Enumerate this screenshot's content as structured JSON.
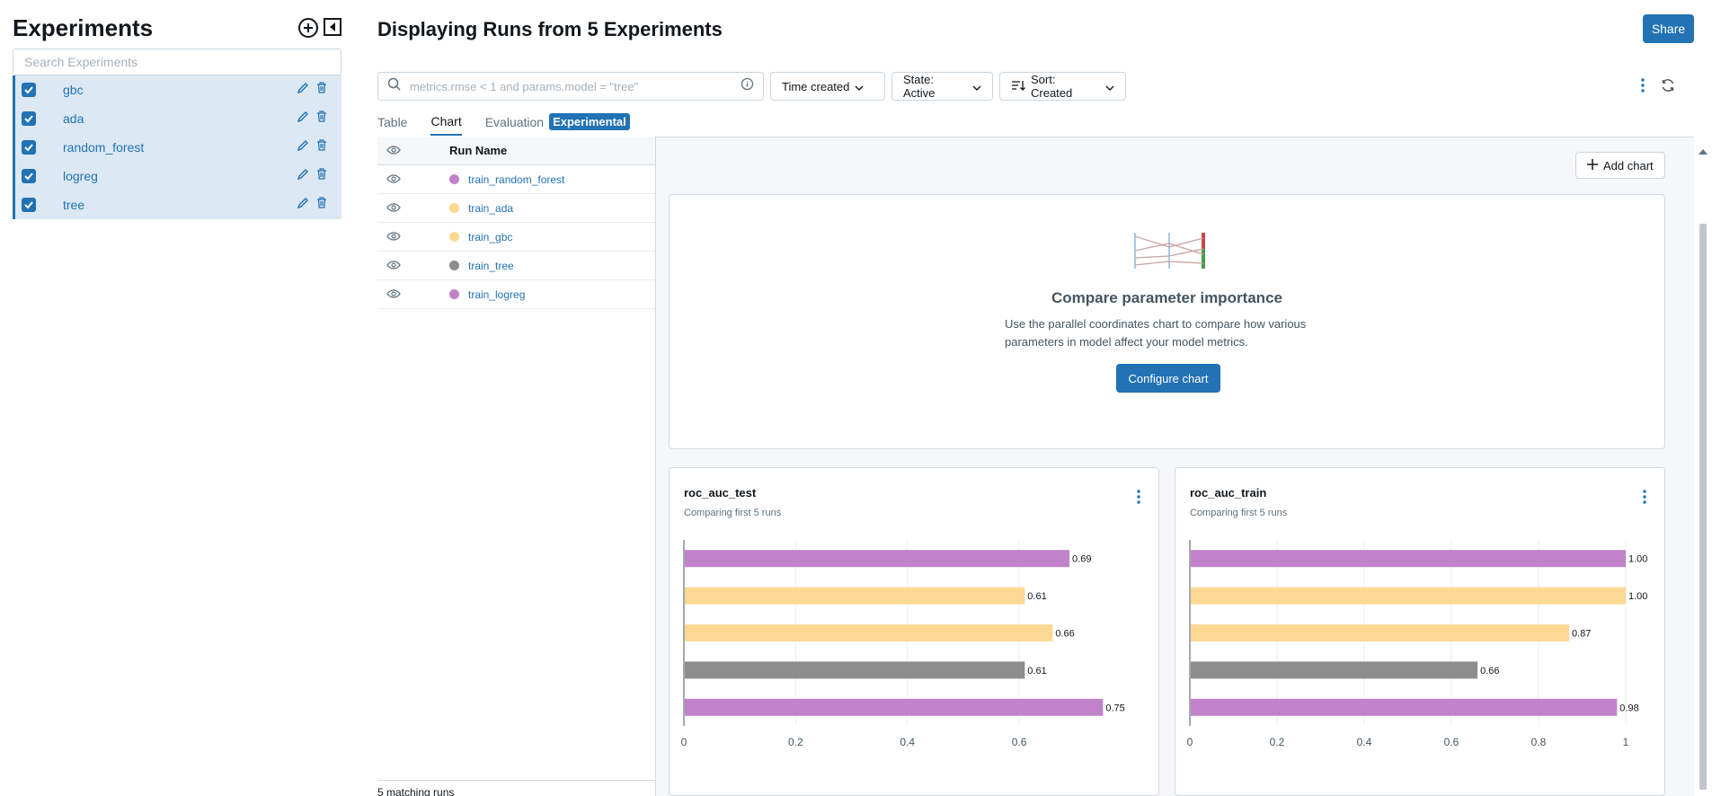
{
  "sidebar": {
    "title": "Experiments",
    "search_placeholder": "Search Experiments",
    "items": [
      {
        "label": "gbc"
      },
      {
        "label": "ada"
      },
      {
        "label": "random_forest"
      },
      {
        "label": "logreg"
      },
      {
        "label": "tree"
      }
    ]
  },
  "header": {
    "title": "Displaying Runs from 5 Experiments",
    "share_label": "Share"
  },
  "toolbar": {
    "filter_placeholder": "metrics.rmse < 1 and params.model = \"tree\"",
    "time_created": "Time created",
    "state": "State: Active",
    "sort": "Sort: Created"
  },
  "tabs": [
    {
      "label": "Table"
    },
    {
      "label": "Chart"
    },
    {
      "label": "Evaluation"
    },
    {
      "label": "Experimental"
    }
  ],
  "runs": {
    "header": "Run Name",
    "rows": [
      {
        "name": "train_random_forest",
        "color": "#c083c9"
      },
      {
        "name": "train_ada",
        "color": "#fdd893"
      },
      {
        "name": "train_gbc",
        "color": "#fdd893"
      },
      {
        "name": "train_tree",
        "color": "#8d8d8d"
      },
      {
        "name": "train_logreg",
        "color": "#c083c9"
      }
    ],
    "footer": "5 matching runs"
  },
  "charts_panel": {
    "add_chart": "Add chart",
    "parallel": {
      "title": "Compare parameter importance",
      "description": "Use the parallel coordinates chart to compare how various parameters in model affect your model metrics.",
      "button": "Configure chart"
    }
  },
  "chart_data": [
    {
      "type": "bar",
      "title": "roc_auc_test",
      "subtitle": "Comparing first 5 runs",
      "categories": [
        "train_random_forest",
        "train_ada",
        "train_gbc",
        "train_tree",
        "train_logreg"
      ],
      "values": [
        0.69,
        0.61,
        0.66,
        0.61,
        0.75
      ],
      "labels": [
        "0.69",
        "0.61",
        "0.66",
        "0.61",
        "0.75"
      ],
      "colors": [
        "#c083c9",
        "#fdd893",
        "#fdd893",
        "#8d8d8d",
        "#c083c9"
      ],
      "xlim": [
        0,
        0.78
      ],
      "ticks": [
        0,
        0.2,
        0.4,
        0.6
      ],
      "tick_labels": [
        "0",
        "0.2",
        "0.4",
        "0.6"
      ]
    },
    {
      "type": "bar",
      "title": "roc_auc_train",
      "subtitle": "Comparing first 5 runs",
      "categories": [
        "train_random_forest",
        "train_ada",
        "train_gbc",
        "train_tree",
        "train_logreg"
      ],
      "values": [
        1.0,
        1.0,
        0.87,
        0.66,
        0.98
      ],
      "labels": [
        "1.00",
        "1.00",
        "0.87",
        "0.66",
        "0.98"
      ],
      "colors": [
        "#c083c9",
        "#fdd893",
        "#fdd893",
        "#8d8d8d",
        "#c083c9"
      ],
      "xlim": [
        0,
        1
      ],
      "ticks": [
        0,
        0.2,
        0.4,
        0.6,
        0.8,
        1
      ],
      "tick_labels": [
        "0",
        "0.2",
        "0.4",
        "0.6",
        "0.8",
        "1"
      ]
    }
  ]
}
